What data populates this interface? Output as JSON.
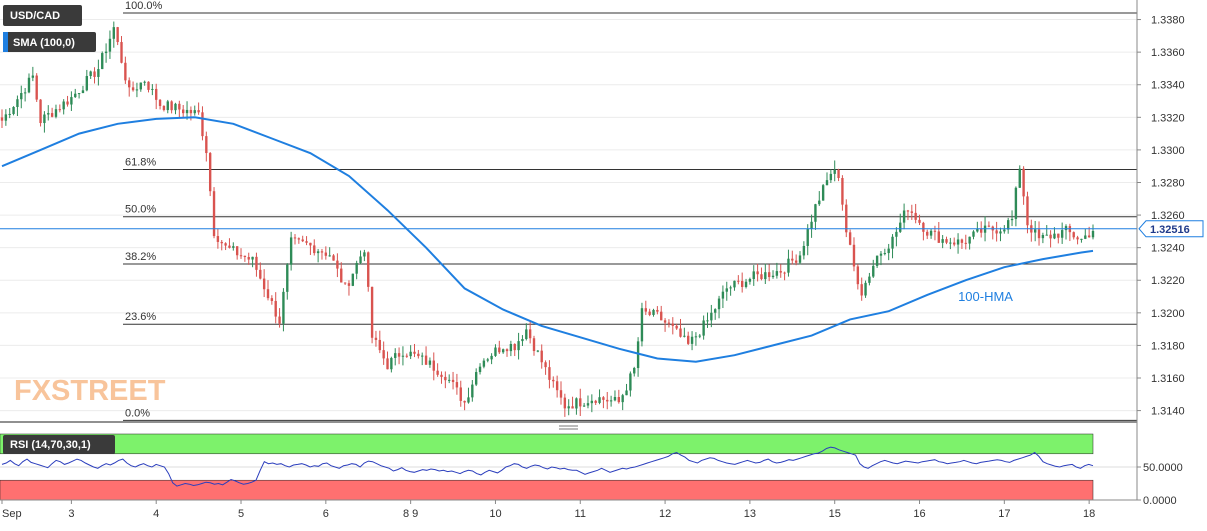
{
  "header": {
    "symbol": "USD/CAD",
    "sma_label": "SMA (100,0)"
  },
  "watermark": "FXSTREET",
  "chart_data": [
    {
      "type": "candlestick",
      "title": "",
      "symbol": "USD/CAD",
      "timeframe_hint": "hourly",
      "last_price": "1.32516",
      "ylim": [
        1.3133,
        1.3392
      ],
      "yticks": [
        "1.3140",
        "1.3160",
        "1.3180",
        "1.3200",
        "1.3220",
        "1.3240",
        "1.3260",
        "1.3280",
        "1.3300",
        "1.3320",
        "1.3340",
        "1.3360",
        "1.3380"
      ],
      "xticks": [
        {
          "label": "Sep",
          "i": 0
        },
        {
          "label": "3",
          "i": 18
        },
        {
          "label": "4",
          "i": 40
        },
        {
          "label": "5",
          "i": 62
        },
        {
          "label": "6",
          "i": 84
        },
        {
          "label": "8 9",
          "i": 106
        },
        {
          "label": "10",
          "i": 128
        },
        {
          "label": "11",
          "i": 150
        },
        {
          "label": "12",
          "i": 172
        },
        {
          "label": "13",
          "i": 194
        },
        {
          "label": "15",
          "i": 216
        },
        {
          "label": "16",
          "i": 238
        },
        {
          "label": "17",
          "i": 260
        },
        {
          "label": "18",
          "i": 282
        }
      ],
      "candle_count": 284,
      "price_path": [
        [
          0,
          1.3318
        ],
        [
          8,
          1.3345
        ],
        [
          10,
          1.3318
        ],
        [
          18,
          1.3332
        ],
        [
          25,
          1.335
        ],
        [
          29,
          1.3375
        ],
        [
          33,
          1.3335
        ],
        [
          37,
          1.3343
        ],
        [
          41,
          1.3328
        ],
        [
          51,
          1.3322
        ],
        [
          53,
          1.33
        ],
        [
          55,
          1.325
        ],
        [
          58,
          1.324
        ],
        [
          65,
          1.3232
        ],
        [
          72,
          1.3195
        ],
        [
          75,
          1.3243
        ],
        [
          79,
          1.3242
        ],
        [
          85,
          1.3236
        ],
        [
          89,
          1.3215
        ],
        [
          92,
          1.323
        ],
        [
          94,
          1.324
        ],
        [
          96,
          1.3185
        ],
        [
          100,
          1.3168
        ],
        [
          104,
          1.3177
        ],
        [
          110,
          1.317
        ],
        [
          115,
          1.3162
        ],
        [
          120,
          1.3145
        ],
        [
          124,
          1.317
        ],
        [
          130,
          1.318
        ],
        [
          133,
          1.318
        ],
        [
          136,
          1.319
        ],
        [
          140,
          1.317
        ],
        [
          143,
          1.3155
        ],
        [
          146,
          1.3143
        ],
        [
          154,
          1.3148
        ],
        [
          160,
          1.3145
        ],
        [
          164,
          1.3165
        ],
        [
          166,
          1.32
        ],
        [
          170,
          1.3198
        ],
        [
          174,
          1.319
        ],
        [
          178,
          1.318
        ],
        [
          183,
          1.3195
        ],
        [
          188,
          1.3215
        ],
        [
          195,
          1.3222
        ],
        [
          202,
          1.3226
        ],
        [
          207,
          1.3236
        ],
        [
          211,
          1.3265
        ],
        [
          215,
          1.3286
        ],
        [
          217,
          1.3285
        ],
        [
          219,
          1.325
        ],
        [
          221,
          1.3228
        ],
        [
          223,
          1.3213
        ],
        [
          227,
          1.3235
        ],
        [
          231,
          1.3245
        ],
        [
          235,
          1.3265
        ],
        [
          240,
          1.325
        ],
        [
          244,
          1.3245
        ],
        [
          249,
          1.3243
        ],
        [
          254,
          1.325
        ],
        [
          259,
          1.3252
        ],
        [
          262,
          1.3257
        ],
        [
          264,
          1.329
        ],
        [
          266,
          1.3255
        ],
        [
          269,
          1.3245
        ],
        [
          273,
          1.3248
        ],
        [
          276,
          1.325
        ],
        [
          280,
          1.3245
        ],
        [
          283,
          1.3251
        ]
      ],
      "series": [
        {
          "name": "100-HMA",
          "color": "#1f7fe0",
          "points": [
            [
              0,
              1.329
            ],
            [
              10,
              1.33
            ],
            [
              20,
              1.331
            ],
            [
              30,
              1.3316
            ],
            [
              40,
              1.3319
            ],
            [
              50,
              1.332
            ],
            [
              60,
              1.3316
            ],
            [
              70,
              1.3307
            ],
            [
              80,
              1.3298
            ],
            [
              90,
              1.3284
            ],
            [
              100,
              1.3263
            ],
            [
              110,
              1.324
            ],
            [
              120,
              1.3215
            ],
            [
              130,
              1.3202
            ],
            [
              140,
              1.3192
            ],
            [
              150,
              1.3185
            ],
            [
              160,
              1.3178
            ],
            [
              170,
              1.3172
            ],
            [
              180,
              1.317
            ],
            [
              190,
              1.3174
            ],
            [
              200,
              1.318
            ],
            [
              210,
              1.3186
            ],
            [
              220,
              1.3196
            ],
            [
              230,
              1.3201
            ],
            [
              240,
              1.3211
            ],
            [
              250,
              1.322
            ],
            [
              260,
              1.3228
            ],
            [
              270,
              1.3233
            ],
            [
              280,
              1.3237
            ],
            [
              283,
              1.3238
            ]
          ]
        }
      ],
      "fibonacci_levels": [
        {
          "label": "100.0%",
          "value": 1.3384
        },
        {
          "label": "61.8%",
          "value": 1.3288
        },
        {
          "label": "50.0%",
          "value": 1.3259
        },
        {
          "label": "38.2%",
          "value": 1.323
        },
        {
          "label": "23.6%",
          "value": 1.3193
        },
        {
          "label": "0.0%",
          "value": 1.3134
        }
      ],
      "annotations": [
        {
          "text": "100-HMA",
          "i": 248,
          "value": 1.3216
        }
      ],
      "colors": {
        "up": "#2e8b57",
        "down": "#d9534f",
        "hma": "#1f7fe0",
        "last_price_line": "#1f7fe0"
      }
    },
    {
      "type": "line",
      "title": "RSI (14,70,30,1)",
      "ylim": [
        0,
        100
      ],
      "yticks": [
        "0.0000",
        "50.0000"
      ],
      "overbought": 70,
      "oversold": 30,
      "zone_colors": {
        "overbought": "#7df26b",
        "oversold": "#ff7070",
        "line": "#2b3ebd"
      },
      "series": [
        {
          "name": "RSI",
          "values": [
            54,
            56,
            60,
            55,
            52,
            58,
            62,
            57,
            55,
            53,
            51,
            49,
            55,
            60,
            58,
            54,
            56,
            59,
            62,
            60,
            56,
            53,
            50,
            48,
            52,
            55,
            53,
            56,
            60,
            62,
            56,
            52,
            50,
            53,
            55,
            52,
            50,
            54,
            52,
            50,
            40,
            26,
            21,
            23,
            25,
            24,
            22,
            23,
            25,
            27,
            26,
            24,
            25,
            23,
            27,
            31,
            29,
            26,
            24,
            25,
            27,
            30,
            45,
            58,
            55,
            56,
            54,
            55,
            52,
            50,
            53,
            54,
            55,
            53,
            50,
            52,
            51,
            55,
            56,
            52,
            50,
            48,
            52,
            53,
            55,
            54,
            50,
            56,
            59,
            58,
            55,
            52,
            50,
            48,
            44,
            46,
            49,
            45,
            43,
            42,
            44,
            46,
            45,
            47,
            46,
            44,
            45,
            43,
            44,
            42,
            40,
            43,
            45,
            44,
            40,
            38,
            42,
            45,
            43,
            41,
            45,
            50,
            52,
            55,
            54,
            50,
            48,
            51,
            53,
            52,
            49,
            47,
            50,
            49,
            47,
            48,
            46,
            45,
            45,
            42,
            39,
            41,
            43,
            45,
            48,
            45,
            42,
            44,
            46,
            48,
            47,
            49,
            50,
            52,
            54,
            56,
            58,
            60,
            62,
            64,
            66,
            70,
            72,
            68,
            65,
            60,
            58,
            56,
            60,
            62,
            64,
            63,
            60,
            58,
            56,
            55,
            54,
            56,
            58,
            60,
            58,
            56,
            57,
            60,
            62,
            58,
            56,
            57,
            59,
            61,
            60,
            62,
            64,
            66,
            68,
            70,
            71,
            74,
            78,
            80,
            79,
            76,
            74,
            72,
            70,
            68,
            55,
            50,
            48,
            52,
            55,
            58,
            60,
            58,
            56,
            55,
            57,
            59,
            58,
            57,
            56,
            58,
            59,
            60,
            61,
            58,
            57,
            55,
            56,
            57,
            58,
            60,
            58,
            56,
            55,
            57,
            58,
            59,
            60,
            61,
            60,
            58,
            57,
            60,
            62,
            64,
            66,
            68,
            72,
            66,
            58,
            55,
            53,
            51,
            50,
            52,
            53,
            54,
            50,
            48,
            52,
            54,
            52
          ]
        }
      ]
    }
  ]
}
